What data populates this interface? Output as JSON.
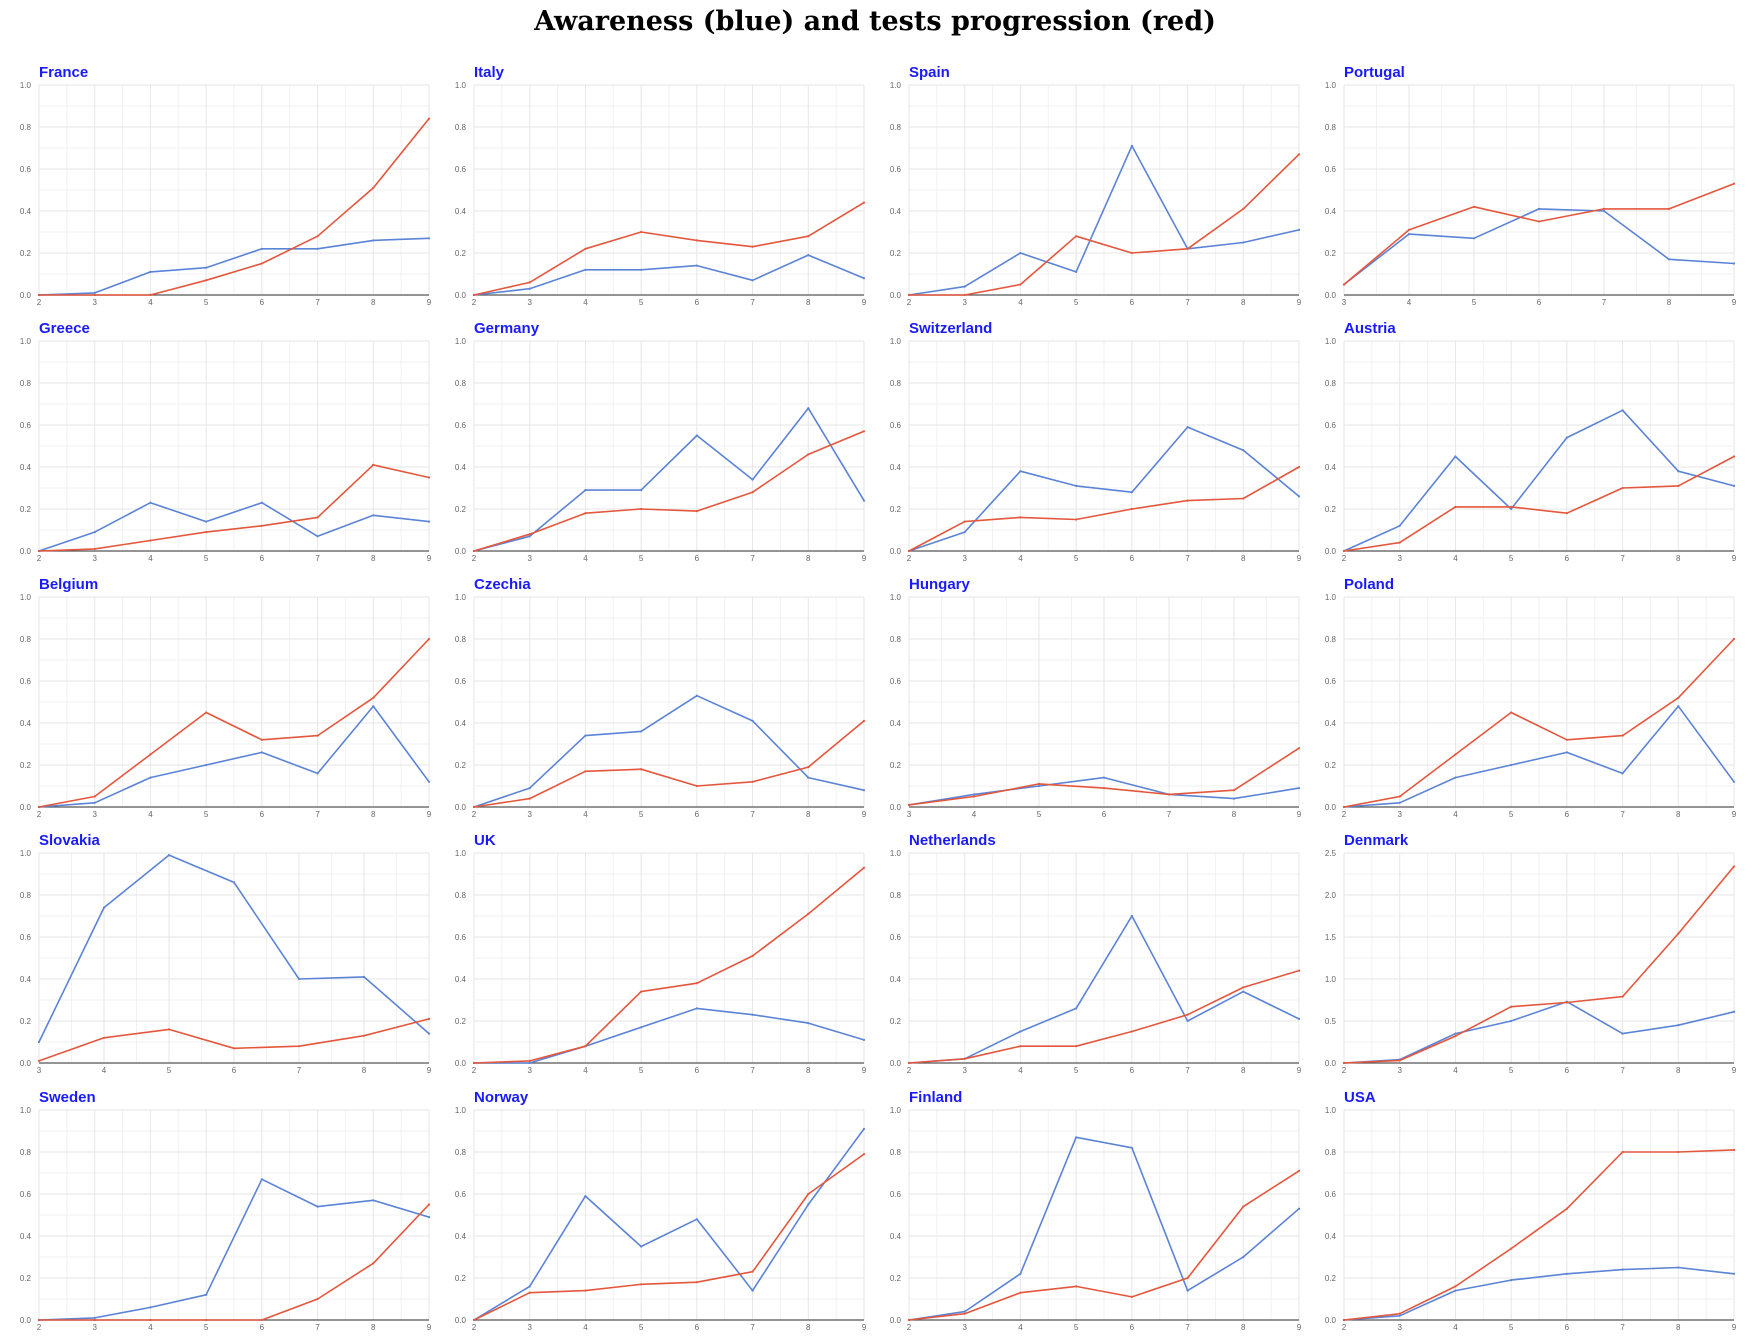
{
  "title": "Awareness (blue) and tests progression (red)",
  "colors": {
    "awareness": "#5b83d6",
    "tests": "#e4573d",
    "title": "#1a1aff",
    "grid": "#e6e6e6",
    "axis": "#555555",
    "tick": "#666666"
  },
  "chart_data": [
    {
      "type": "line",
      "title": "France",
      "ylim": [
        0,
        1
      ],
      "yticks": [
        0,
        0.2,
        0.4,
        0.6,
        0.8,
        1.0
      ],
      "x": [
        2,
        3,
        4,
        5,
        6,
        7,
        8,
        9
      ],
      "series": [
        {
          "values": [
            0,
            0.01,
            0.11,
            0.13,
            0.22,
            0.22,
            0.26,
            0.27
          ]
        },
        {
          "values": [
            0,
            0,
            0,
            0.07,
            0.15,
            0.28,
            0.51,
            0.84
          ]
        }
      ]
    },
    {
      "type": "line",
      "title": "Italy",
      "ylim": [
        0,
        1
      ],
      "yticks": [
        0,
        0.2,
        0.4,
        0.6,
        0.8,
        1.0
      ],
      "x": [
        2,
        3,
        4,
        5,
        6,
        7,
        8,
        9
      ],
      "series": [
        {
          "values": [
            0,
            0.03,
            0.12,
            0.12,
            0.14,
            0.07,
            0.19,
            0.08
          ]
        },
        {
          "values": [
            0,
            0.06,
            0.22,
            0.3,
            0.26,
            0.23,
            0.28,
            0.44
          ]
        }
      ]
    },
    {
      "type": "line",
      "title": "Spain",
      "ylim": [
        0,
        1
      ],
      "yticks": [
        0,
        0.2,
        0.4,
        0.6,
        0.8,
        1.0
      ],
      "x": [
        2,
        3,
        4,
        5,
        6,
        7,
        8,
        9
      ],
      "series": [
        {
          "values": [
            0,
            0.04,
            0.2,
            0.11,
            0.71,
            0.22,
            0.25,
            0.31
          ]
        },
        {
          "values": [
            0,
            0,
            0.05,
            0.28,
            0.2,
            0.22,
            0.41,
            0.67
          ]
        }
      ]
    },
    {
      "type": "line",
      "title": "Portugal",
      "ylim": [
        0,
        1
      ],
      "yticks": [
        0,
        0.2,
        0.4,
        0.6,
        0.8,
        1.0
      ],
      "x": [
        3,
        4,
        5,
        6,
        7,
        8,
        9
      ],
      "series": [
        {
          "values": [
            0.05,
            0.29,
            0.27,
            0.41,
            0.4,
            0.17,
            0.15
          ]
        },
        {
          "values": [
            0.05,
            0.31,
            0.42,
            0.35,
            0.41,
            0.41,
            0.53
          ]
        }
      ]
    },
    {
      "type": "line",
      "title": "Greece",
      "ylim": [
        0,
        1
      ],
      "yticks": [
        0,
        0.2,
        0.4,
        0.6,
        0.8,
        1.0
      ],
      "x": [
        2,
        3,
        4,
        5,
        6,
        7,
        8,
        9
      ],
      "series": [
        {
          "values": [
            0,
            0.09,
            0.23,
            0.14,
            0.23,
            0.07,
            0.17,
            0.14
          ]
        },
        {
          "values": [
            0,
            0.01,
            0.05,
            0.09,
            0.12,
            0.16,
            0.41,
            0.35
          ]
        }
      ]
    },
    {
      "type": "line",
      "title": "Germany",
      "ylim": [
        0,
        1
      ],
      "yticks": [
        0,
        0.2,
        0.4,
        0.6,
        0.8,
        1.0
      ],
      "x": [
        2,
        3,
        4,
        5,
        6,
        7,
        8,
        9
      ],
      "series": [
        {
          "values": [
            0,
            0.07,
            0.29,
            0.29,
            0.55,
            0.34,
            0.68,
            0.24
          ]
        },
        {
          "values": [
            0,
            0.08,
            0.18,
            0.2,
            0.19,
            0.28,
            0.46,
            0.57
          ]
        }
      ]
    },
    {
      "type": "line",
      "title": "Switzerland",
      "ylim": [
        0,
        1
      ],
      "yticks": [
        0,
        0.2,
        0.4,
        0.6,
        0.8,
        1.0
      ],
      "x": [
        2,
        3,
        4,
        5,
        6,
        7,
        8,
        9
      ],
      "series": [
        {
          "values": [
            0,
            0.09,
            0.38,
            0.31,
            0.28,
            0.59,
            0.48,
            0.26
          ]
        },
        {
          "values": [
            0,
            0.14,
            0.16,
            0.15,
            0.2,
            0.24,
            0.25,
            0.4
          ]
        }
      ]
    },
    {
      "type": "line",
      "title": "Austria",
      "ylim": [
        0,
        1
      ],
      "yticks": [
        0,
        0.2,
        0.4,
        0.6,
        0.8,
        1.0
      ],
      "x": [
        2,
        3,
        4,
        5,
        6,
        7,
        8,
        9
      ],
      "series": [
        {
          "values": [
            0,
            0.12,
            0.45,
            0.2,
            0.54,
            0.67,
            0.38,
            0.31
          ]
        },
        {
          "values": [
            0,
            0.04,
            0.21,
            0.21,
            0.18,
            0.3,
            0.31,
            0.45
          ]
        }
      ]
    },
    {
      "type": "line",
      "title": "Belgium",
      "ylim": [
        0,
        1
      ],
      "yticks": [
        0,
        0.2,
        0.4,
        0.6,
        0.8,
        1.0
      ],
      "x": [
        2,
        3,
        4,
        5,
        6,
        7,
        8,
        9
      ],
      "series": [
        {
          "values": [
            0,
            0.02,
            0.14,
            0.2,
            0.26,
            0.16,
            0.48,
            0.12
          ]
        },
        {
          "values": [
            0,
            0.05,
            0.25,
            0.45,
            0.32,
            0.34,
            0.52,
            0.8
          ]
        }
      ]
    },
    {
      "type": "line",
      "title": "Czechia",
      "ylim": [
        0,
        1
      ],
      "yticks": [
        0,
        0.2,
        0.4,
        0.6,
        0.8,
        1.0
      ],
      "x": [
        2,
        3,
        4,
        5,
        6,
        7,
        8,
        9
      ],
      "series": [
        {
          "values": [
            0,
            0.09,
            0.34,
            0.36,
            0.53,
            0.41,
            0.14,
            0.08
          ]
        },
        {
          "values": [
            0,
            0.04,
            0.17,
            0.18,
            0.1,
            0.12,
            0.19,
            0.41
          ]
        }
      ]
    },
    {
      "type": "line",
      "title": "Hungary",
      "ylim": [
        0,
        1
      ],
      "yticks": [
        0,
        0.2,
        0.4,
        0.6,
        0.8,
        1.0
      ],
      "x": [
        3,
        4,
        5,
        6,
        7,
        8,
        9
      ],
      "series": [
        {
          "values": [
            0.01,
            0.06,
            0.1,
            0.14,
            0.06,
            0.04,
            0.09
          ]
        },
        {
          "values": [
            0.01,
            0.05,
            0.11,
            0.09,
            0.06,
            0.08,
            0.28
          ]
        }
      ]
    },
    {
      "type": "line",
      "title": "Poland",
      "ylim": [
        0,
        1
      ],
      "yticks": [
        0,
        0.2,
        0.4,
        0.6,
        0.8,
        1.0
      ],
      "x": [
        2,
        3,
        4,
        5,
        6,
        7,
        8,
        9
      ],
      "series": [
        {
          "values": [
            0,
            0.02,
            0.14,
            0.2,
            0.26,
            0.16,
            0.48,
            0.12
          ]
        },
        {
          "values": [
            0,
            0.05,
            0.25,
            0.45,
            0.32,
            0.34,
            0.52,
            0.8
          ]
        }
      ]
    },
    {
      "type": "line",
      "title": "Slovakia",
      "ylim": [
        0,
        1
      ],
      "yticks": [
        0,
        0.2,
        0.4,
        0.6,
        0.8,
        1.0
      ],
      "x": [
        3,
        4,
        5,
        6,
        7,
        8,
        9
      ],
      "series": [
        {
          "values": [
            0.1,
            0.74,
            0.99,
            0.86,
            0.4,
            0.41,
            0.14
          ]
        },
        {
          "values": [
            0.01,
            0.12,
            0.16,
            0.07,
            0.08,
            0.13,
            0.21
          ]
        }
      ]
    },
    {
      "type": "line",
      "title": "UK",
      "ylim": [
        0,
        1
      ],
      "yticks": [
        0,
        0.2,
        0.4,
        0.6,
        0.8,
        1.0
      ],
      "x": [
        2,
        3,
        4,
        5,
        6,
        7,
        8,
        9
      ],
      "series": [
        {
          "values": [
            0,
            0,
            0.08,
            0.17,
            0.26,
            0.23,
            0.19,
            0.11
          ]
        },
        {
          "values": [
            0,
            0.01,
            0.08,
            0.34,
            0.38,
            0.51,
            0.71,
            0.93
          ]
        }
      ]
    },
    {
      "type": "line",
      "title": "Netherlands",
      "ylim": [
        0,
        1
      ],
      "yticks": [
        0,
        0.2,
        0.4,
        0.6,
        0.8,
        1.0
      ],
      "x": [
        2,
        3,
        4,
        5,
        6,
        7,
        8,
        9
      ],
      "series": [
        {
          "values": [
            0,
            0.02,
            0.15,
            0.26,
            0.7,
            0.2,
            0.34,
            0.21
          ]
        },
        {
          "values": [
            0,
            0.02,
            0.08,
            0.08,
            0.15,
            0.23,
            0.36,
            0.44
          ]
        }
      ]
    },
    {
      "type": "line",
      "title": "Denmark",
      "ylim": [
        0,
        2.5
      ],
      "yticks": [
        0,
        0.5,
        1.0,
        1.5,
        2.0,
        2.5
      ],
      "x": [
        2,
        3,
        4,
        5,
        6,
        7,
        8,
        9
      ],
      "series": [
        {
          "values": [
            0,
            0.04,
            0.35,
            0.5,
            0.73,
            0.35,
            0.45,
            0.61
          ]
        },
        {
          "values": [
            0,
            0.03,
            0.32,
            0.67,
            0.72,
            0.79,
            1.54,
            2.34
          ]
        }
      ]
    },
    {
      "type": "line",
      "title": "Sweden",
      "ylim": [
        0,
        1
      ],
      "yticks": [
        0,
        0.2,
        0.4,
        0.6,
        0.8,
        1.0
      ],
      "x": [
        2,
        3,
        4,
        5,
        6,
        7,
        8,
        9
      ],
      "series": [
        {
          "values": [
            0,
            0.01,
            0.06,
            0.12,
            0.67,
            0.54,
            0.57,
            0.49
          ]
        },
        {
          "values": [
            0,
            0,
            0,
            0,
            0,
            0.1,
            0.27,
            0.55
          ]
        }
      ]
    },
    {
      "type": "line",
      "title": "Norway",
      "ylim": [
        0,
        1
      ],
      "yticks": [
        0,
        0.2,
        0.4,
        0.6,
        0.8,
        1.0
      ],
      "x": [
        2,
        3,
        4,
        5,
        6,
        7,
        8,
        9
      ],
      "series": [
        {
          "values": [
            0,
            0.16,
            0.59,
            0.35,
            0.48,
            0.14,
            0.55,
            0.91
          ]
        },
        {
          "values": [
            0,
            0.13,
            0.14,
            0.17,
            0.18,
            0.23,
            0.6,
            0.79
          ]
        }
      ]
    },
    {
      "type": "line",
      "title": "Finland",
      "ylim": [
        0,
        1
      ],
      "yticks": [
        0,
        0.2,
        0.4,
        0.6,
        0.8,
        1.0
      ],
      "x": [
        2,
        3,
        4,
        5,
        6,
        7,
        8,
        9
      ],
      "series": [
        {
          "values": [
            0,
            0.04,
            0.22,
            0.87,
            0.82,
            0.14,
            0.3,
            0.53
          ]
        },
        {
          "values": [
            0,
            0.03,
            0.13,
            0.16,
            0.11,
            0.2,
            0.54,
            0.71
          ]
        }
      ]
    },
    {
      "type": "line",
      "title": "USA",
      "ylim": [
        0,
        1
      ],
      "yticks": [
        0,
        0.2,
        0.4,
        0.6,
        0.8,
        1.0
      ],
      "x": [
        2,
        3,
        4,
        5,
        6,
        7,
        8,
        9
      ],
      "series": [
        {
          "values": [
            0,
            0.02,
            0.14,
            0.19,
            0.22,
            0.24,
            0.25,
            0.22
          ]
        },
        {
          "values": [
            0,
            0.03,
            0.16,
            0.34,
            0.53,
            0.8,
            0.8,
            0.81
          ]
        }
      ]
    }
  ]
}
